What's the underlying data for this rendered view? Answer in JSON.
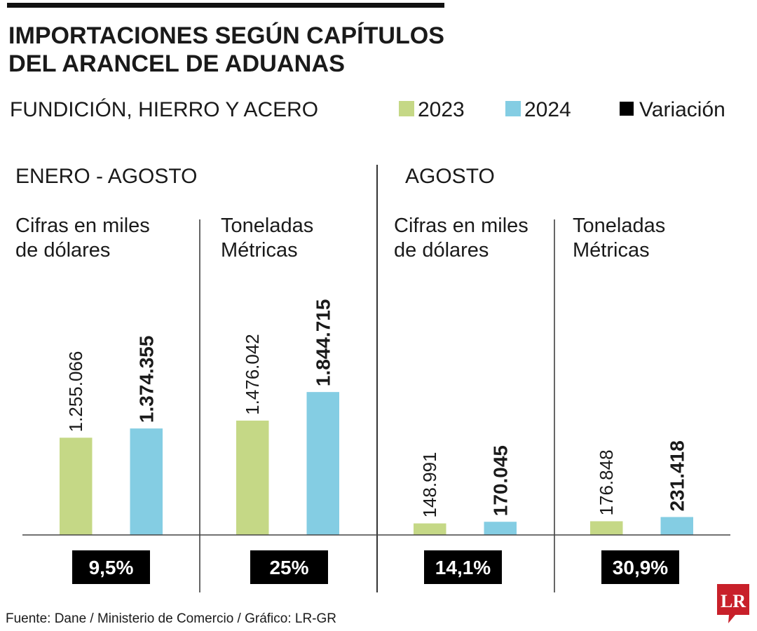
{
  "chart_data": {
    "type": "bar",
    "title": "IMPORTACIONES SEGÚN CAPÍTULOS DEL ARANCEL DE ADUANAS",
    "title_lines": [
      "IMPORTACIONES SEGÚN CAPÍTULOS",
      "DEL ARANCEL DE ADUANAS"
    ],
    "subtitle": "FUNDICIÓN, HIERRO Y ACERO",
    "legend": [
      {
        "label": "2023",
        "color": "#c5d886"
      },
      {
        "label": "2024",
        "color": "#84cde3"
      },
      {
        "label": "Variación",
        "color": "#000000"
      }
    ],
    "legend_placement": "top-right",
    "grid": false,
    "periods": [
      "ENERO - AGOSTO",
      "AGOSTO"
    ],
    "panels": [
      {
        "period": "ENERO - AGOSTO",
        "unit_lines": [
          "Cifras en miles",
          "de dólares"
        ],
        "values": [
          1255066,
          1374355
        ],
        "labels": [
          "1.255.066",
          "1.374.355"
        ],
        "variation": "9,5%"
      },
      {
        "period": "ENERO - AGOSTO",
        "unit_lines": [
          "Toneladas",
          "Métricas"
        ],
        "values": [
          1476042,
          1844715
        ],
        "labels": [
          "1.476.042",
          "1.844.715"
        ],
        "variation": "25%"
      },
      {
        "period": "AGOSTO",
        "unit_lines": [
          "Cifras en miles",
          "de dólares"
        ],
        "values": [
          148991,
          170045
        ],
        "labels": [
          "148.991",
          "170.045"
        ],
        "variation": "14,1%"
      },
      {
        "period": "AGOSTO",
        "unit_lines": [
          "Toneladas",
          "Métricas"
        ],
        "values": [
          176848,
          231418
        ],
        "labels": [
          "176.848",
          "231.418"
        ],
        "variation": "30,9%"
      }
    ],
    "series": [
      {
        "name": "2023"
      },
      {
        "name": "2024"
      }
    ]
  },
  "source": "Fuente: Dane / Ministerio de Comercio / Gráfico: LR-GR",
  "logo": {
    "text": "LR",
    "color": "#c8202a"
  }
}
